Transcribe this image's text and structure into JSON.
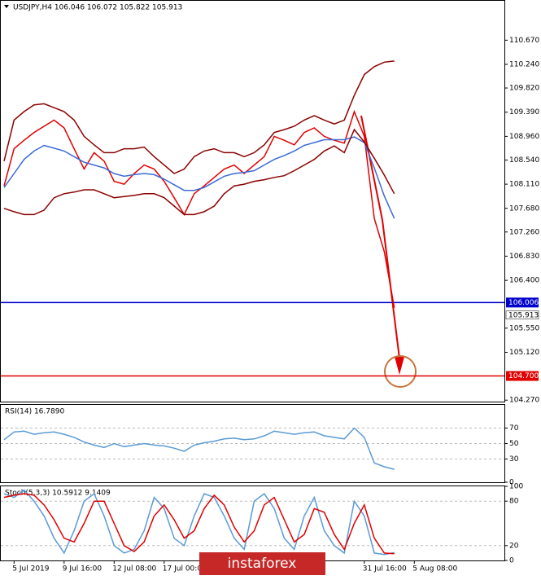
{
  "chart_data": [
    {
      "type": "line",
      "title": "USDJPY,H4  106.046 106.072 105.822 105.913",
      "ylim": [
        104.23,
        111.37
      ],
      "yticks": [
        {
          "value": 110.67,
          "label": "110.670"
        },
        {
          "value": 110.24,
          "label": "110.240"
        },
        {
          "value": 109.82,
          "label": "109.820"
        },
        {
          "value": 109.39,
          "label": "109.390"
        },
        {
          "value": 108.96,
          "label": "108.960"
        },
        {
          "value": 108.54,
          "label": "108.540"
        },
        {
          "value": 108.11,
          "label": "108.110"
        },
        {
          "value": 107.68,
          "label": "107.680"
        },
        {
          "value": 107.26,
          "label": "107.260"
        },
        {
          "value": 106.83,
          "label": "106.830"
        },
        {
          "value": 106.4,
          "label": "106.400"
        },
        {
          "value": 105.55,
          "label": "105.550"
        },
        {
          "value": 105.12,
          "label": "105.120"
        },
        {
          "value": 104.27,
          "label": "104.270"
        }
      ],
      "hlines": [
        {
          "value": 106.006,
          "color": "#0000cc"
        },
        {
          "value": 104.7,
          "label": "104.700",
          "color": "#e00000"
        }
      ],
      "series": [
        {
          "color": "#e00000",
          "values": [
            108.08,
            108.74,
            108.89,
            109.03,
            109.14,
            109.25,
            109.11,
            108.74,
            108.38,
            108.67,
            108.52,
            108.16,
            108.11,
            108.3,
            108.45,
            108.38,
            108.16,
            107.87,
            107.57,
            107.94,
            108.08,
            108.23,
            108.38,
            108.45,
            108.3,
            108.45,
            108.6,
            108.96,
            108.89,
            108.81,
            109.03,
            109.11,
            108.96,
            108.89,
            108.84,
            109.4,
            108.96,
            107.5,
            106.91,
            105.913,
            null,
            null,
            null,
            null,
            null,
            null,
            null,
            null,
            null,
            null
          ]
        },
        {
          "color": "#3a6bd6",
          "values": [
            108.05,
            108.3,
            108.55,
            108.7,
            108.8,
            108.75,
            108.7,
            108.6,
            108.5,
            108.45,
            108.4,
            108.3,
            108.25,
            108.28,
            108.3,
            108.28,
            108.2,
            108.1,
            108.0,
            108.0,
            108.05,
            108.15,
            108.25,
            108.3,
            108.32,
            108.35,
            108.45,
            108.55,
            108.62,
            108.7,
            108.8,
            108.85,
            108.9,
            108.9,
            108.9,
            108.95,
            108.85,
            108.4,
            107.9,
            107.5,
            null,
            null,
            null,
            null,
            null,
            null,
            null,
            null,
            null,
            null
          ]
        },
        {
          "color": "#8b0000",
          "values": [
            108.52,
            109.25,
            109.4,
            109.52,
            109.54,
            109.47,
            109.4,
            109.25,
            108.96,
            108.81,
            108.67,
            108.67,
            108.74,
            108.74,
            108.77,
            108.6,
            108.45,
            108.3,
            108.38,
            108.6,
            108.7,
            108.74,
            108.67,
            108.67,
            108.6,
            108.67,
            108.81,
            109.03,
            109.08,
            109.14,
            109.25,
            109.33,
            109.25,
            109.18,
            109.25,
            109.69,
            110.06,
            110.2,
            110.28,
            110.3,
            null,
            null,
            null,
            null,
            null,
            null,
            null,
            null,
            null,
            null
          ]
        },
        {
          "color": "#8b0000",
          "values": [
            107.68,
            107.62,
            107.57,
            107.57,
            107.65,
            107.87,
            107.94,
            107.97,
            108.01,
            108.01,
            107.94,
            107.87,
            107.89,
            107.91,
            107.94,
            107.94,
            107.87,
            107.72,
            107.57,
            107.57,
            107.62,
            107.72,
            107.94,
            108.08,
            108.11,
            108.16,
            108.19,
            108.23,
            108.26,
            108.35,
            108.45,
            108.55,
            108.7,
            108.79,
            108.67,
            109.08,
            108.86,
            108.57,
            108.27,
            107.94,
            null,
            null,
            null,
            null,
            null,
            null,
            null,
            null,
            null,
            null
          ]
        }
      ]
    },
    {
      "type": "line",
      "title": "RSI(14) 16.7890",
      "ylim": [
        0,
        100
      ],
      "yticks": [
        0,
        30,
        50,
        70
      ],
      "grid": true,
      "series": [
        {
          "color": "#5b9bd5",
          "values": [
            55,
            65,
            66,
            62,
            64,
            65,
            62,
            58,
            52,
            48,
            45,
            50,
            46,
            48,
            50,
            48,
            47,
            44,
            40,
            48,
            51,
            53,
            56,
            57,
            55,
            56,
            60,
            66,
            64,
            62,
            64,
            65,
            60,
            58,
            56,
            70,
            58,
            25,
            20,
            16.789,
            null,
            null,
            null,
            null,
            null,
            null,
            null,
            null,
            null,
            null
          ]
        }
      ]
    },
    {
      "type": "line",
      "title": "Stoch(5,3,3) 10.5912 9.1409",
      "ylim": [
        0,
        100
      ],
      "yticks": [
        0,
        20,
        80,
        100
      ],
      "grid": true,
      "categories": [
        null,
        "5 Jul 2019",
        null,
        null,
        null,
        null,
        "9 Jul 16:00",
        null,
        null,
        null,
        null,
        "12 Jul 08:00",
        null,
        null,
        null,
        null,
        "17 Jul 00:00",
        null,
        null,
        null,
        null,
        null,
        null,
        null,
        null,
        null,
        null,
        null,
        null,
        null,
        null,
        null,
        null,
        null,
        null,
        null,
        "31 Jul 16:00",
        null,
        null,
        null,
        null,
        "5 Aug 08:00",
        null,
        null,
        null,
        null,
        null,
        null,
        null,
        null
      ],
      "series": [
        {
          "color": "#5b9bd5",
          "values": [
            90,
            85,
            95,
            80,
            60,
            30,
            10,
            40,
            80,
            90,
            60,
            20,
            10,
            15,
            40,
            85,
            70,
            30,
            20,
            60,
            90,
            85,
            60,
            30,
            15,
            80,
            90,
            70,
            30,
            15,
            60,
            85,
            40,
            20,
            10,
            80,
            60,
            10,
            8,
            10.5912,
            null,
            null,
            null,
            null,
            null,
            null,
            null,
            null,
            null,
            null
          ]
        },
        {
          "color": "#e00000",
          "values": [
            85,
            88,
            90,
            88,
            75,
            55,
            30,
            25,
            50,
            80,
            80,
            50,
            20,
            12,
            25,
            60,
            75,
            55,
            30,
            40,
            70,
            88,
            75,
            45,
            25,
            40,
            75,
            85,
            55,
            25,
            35,
            70,
            65,
            35,
            15,
            50,
            75,
            30,
            10,
            9.1409,
            null,
            null,
            null,
            null,
            null,
            null,
            null,
            null,
            null,
            null
          ]
        }
      ]
    }
  ],
  "watermark": "instaforex"
}
